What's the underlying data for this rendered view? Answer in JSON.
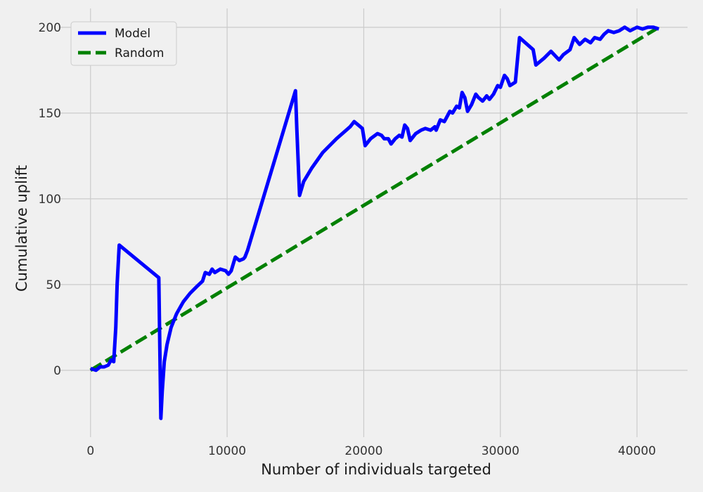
{
  "chart_data": {
    "type": "line",
    "title": "",
    "xlabel": "Number of individuals targeted",
    "ylabel": "Cumulative uplift",
    "xlim": [
      -2200,
      43700
    ],
    "ylim": [
      -39,
      211
    ],
    "xticks": [
      0,
      10000,
      20000,
      30000,
      40000
    ],
    "yticks": [
      0,
      50,
      100,
      150,
      200
    ],
    "grid": true,
    "legend_position": "top-left",
    "series": [
      {
        "name": "Model",
        "color": "#0000ff",
        "style": "solid",
        "x": [
          0,
          400,
          700,
          1000,
          1300,
          1500,
          1700,
          1850,
          1950,
          2100,
          5000,
          5150,
          5250,
          5400,
          5600,
          5900,
          6300,
          6800,
          7300,
          7800,
          8200,
          8400,
          8700,
          8900,
          9100,
          9500,
          9900,
          10100,
          10300,
          10600,
          10900,
          11200,
          11300,
          11500,
          15000,
          15100,
          15300,
          15600,
          16200,
          17000,
          18000,
          19000,
          19300,
          19600,
          19900,
          20100,
          20500,
          21000,
          21300,
          21500,
          21800,
          22000,
          22300,
          22600,
          22800,
          23000,
          23200,
          23400,
          23800,
          24200,
          24500,
          24900,
          25200,
          25300,
          25600,
          25900,
          26100,
          26300,
          26500,
          26800,
          27000,
          27200,
          27400,
          27600,
          27900,
          28200,
          28400,
          28700,
          29000,
          29200,
          29500,
          29800,
          30000,
          30300,
          30500,
          30700,
          31100,
          31400,
          32400,
          32600,
          33200,
          33700,
          34300,
          34600,
          35100,
          35400,
          35800,
          36200,
          36600,
          36900,
          37300,
          37600,
          37900,
          38300,
          38700,
          39100,
          39500,
          40000,
          40400,
          40800,
          41200,
          41600
        ],
        "y": [
          1,
          0,
          2,
          2,
          3,
          6,
          5,
          25,
          50,
          73,
          54,
          -28,
          -12,
          5,
          15,
          25,
          33,
          40,
          45,
          49,
          52,
          57,
          56,
          59,
          57,
          59,
          58,
          56,
          58,
          66,
          64,
          65,
          66,
          70,
          163,
          141,
          102,
          110,
          118,
          127,
          135,
          142,
          145,
          143,
          141,
          131,
          135,
          138,
          137,
          135,
          135,
          132,
          135,
          137,
          136,
          143,
          141,
          134,
          138,
          140,
          141,
          140,
          142,
          140,
          146,
          145,
          148,
          151,
          150,
          154,
          153,
          162,
          159,
          151,
          155,
          161,
          159,
          157,
          160,
          158,
          161,
          166,
          165,
          172,
          170,
          166,
          168,
          194,
          187,
          178,
          182,
          186,
          181,
          184,
          187,
          194,
          190,
          193,
          191,
          194,
          193,
          196,
          198,
          197,
          198,
          200,
          198,
          200,
          199,
          200,
          200,
          199
        ]
      },
      {
        "name": "Random",
        "color": "#008000",
        "style": "dashed",
        "x": [
          0,
          41600
        ],
        "y": [
          0,
          200
        ]
      }
    ]
  }
}
